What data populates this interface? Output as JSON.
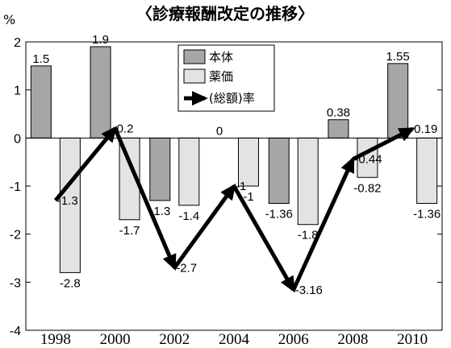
{
  "title": "〈診療報酬改定の推移〉",
  "unit": "%",
  "colors": {
    "honntai": "#a6a6a6",
    "yakka": "#e3e3e3",
    "line": "#000000"
  },
  "chart_data": {
    "type": "bar",
    "categories": [
      "1998",
      "2000",
      "2002",
      "2004",
      "2006",
      "2008",
      "2010"
    ],
    "ylim": [
      -4,
      2
    ],
    "yticks": [
      2,
      1,
      0,
      -1,
      -2,
      -3,
      -4
    ],
    "grid": false,
    "legend_position": "top-center",
    "series": [
      {
        "name": "本体",
        "type": "bar",
        "values": [
          1.5,
          1.9,
          -1.3,
          0,
          -1.36,
          0.38,
          1.55
        ],
        "labels": [
          "1.5",
          "1.9",
          "-1.3",
          "0",
          "-1.36",
          "0.38",
          "1.55"
        ]
      },
      {
        "name": "薬価",
        "type": "bar",
        "values": [
          -2.8,
          -1.7,
          -1.4,
          -1,
          -1.8,
          -0.82,
          -1.36
        ],
        "labels": [
          "-2.8",
          "-1.7",
          "-1.4",
          "-1",
          "-1.8",
          "-0.82",
          "-1.36"
        ]
      },
      {
        "name": "(総額)率",
        "type": "line",
        "values": [
          -1.3,
          0.2,
          -2.7,
          -1,
          -3.16,
          -0.44,
          0.19
        ],
        "labels": [
          "-1.3",
          "0.2",
          "-2.7",
          "-1",
          "-3.16",
          "-0.44",
          "0.19"
        ]
      }
    ]
  }
}
